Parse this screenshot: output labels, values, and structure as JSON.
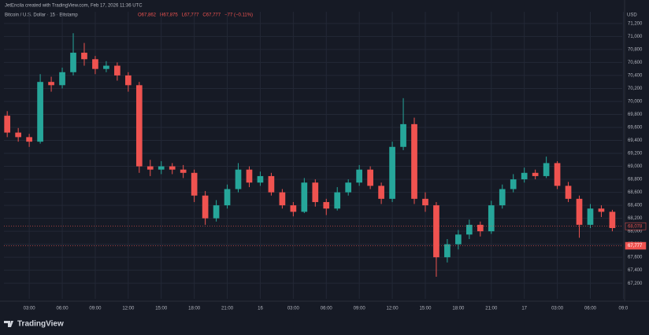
{
  "header": {
    "credit": "JetEncila created with TradingView.com, Feb 17, 2026 11:36 UTC",
    "symbol": "Bitcoin / U.S. Dollar · 15 · Bitstamp",
    "ohlc": [
      "O67,862",
      "H67,875",
      "L67,777",
      "C67,777",
      "−77 (−0.11%)"
    ],
    "brand": "TradingView"
  },
  "chart_data": {
    "type": "candlestick",
    "currency": "USD",
    "up_color": "#26a69a",
    "down_color": "#ef5350",
    "grid": true,
    "x": [
      1,
      2,
      3,
      4,
      5,
      6,
      7,
      8,
      9,
      10,
      11,
      12,
      13,
      14,
      15,
      16,
      17,
      18,
      19,
      20,
      21,
      22,
      23,
      24,
      25,
      26,
      27,
      28,
      29,
      30,
      31,
      32,
      33,
      34,
      35,
      36,
      37,
      38,
      39,
      40,
      41,
      42,
      43,
      44,
      45,
      46,
      47,
      48,
      49,
      50,
      51,
      52,
      53,
      54,
      55,
      56
    ],
    "open": [
      69780,
      69520,
      69450,
      69380,
      70300,
      70250,
      70450,
      70750,
      70650,
      70500,
      70550,
      70400,
      70250,
      69000,
      68950,
      69000,
      68950,
      68900,
      68550,
      68200,
      68400,
      68650,
      68950,
      68750,
      68850,
      68600,
      68400,
      68300,
      68750,
      68450,
      68350,
      68600,
      68750,
      68950,
      68700,
      68500,
      69300,
      69650,
      68500,
      68400,
      67600,
      67800,
      67950,
      68100,
      68000,
      68400,
      68650,
      68800,
      68900,
      68850,
      69050,
      68700,
      68500,
      68100,
      68350,
      68300
    ],
    "high": [
      69850,
      69590,
      69500,
      70420,
      70380,
      70520,
      71050,
      70900,
      70700,
      70620,
      70600,
      70450,
      70300,
      69100,
      69080,
      69050,
      69020,
      68950,
      68620,
      68480,
      68720,
      69050,
      69000,
      68920,
      68900,
      68650,
      68450,
      68820,
      68800,
      68500,
      68680,
      68800,
      69020,
      69000,
      68750,
      69380,
      70050,
      69750,
      68600,
      68450,
      67880,
      68020,
      68180,
      68150,
      68470,
      68720,
      68880,
      68980,
      68950,
      69150,
      69080,
      68760,
      68550,
      68420,
      68400,
      68330
    ],
    "low": [
      69450,
      69380,
      69300,
      69350,
      70150,
      70200,
      70400,
      70550,
      70420,
      70450,
      70320,
      70150,
      68900,
      68850,
      68880,
      68880,
      68820,
      68450,
      68100,
      68150,
      68350,
      68600,
      68680,
      68700,
      68550,
      68350,
      68230,
      68280,
      68380,
      68250,
      68320,
      68550,
      68700,
      68650,
      68420,
      68450,
      69250,
      68420,
      68300,
      67300,
      67520,
      67720,
      67880,
      67920,
      67960,
      68350,
      68600,
      68750,
      68800,
      68820,
      68650,
      68450,
      67900,
      68050,
      68220,
      68000
    ],
    "close": [
      69520,
      69450,
      69380,
      70300,
      70250,
      70450,
      70750,
      70650,
      70500,
      70550,
      70400,
      70250,
      69000,
      68950,
      69000,
      68950,
      68900,
      68550,
      68200,
      68400,
      68650,
      68950,
      68750,
      68850,
      68600,
      68400,
      68300,
      68750,
      68450,
      68350,
      68600,
      68750,
      68950,
      68700,
      68500,
      69300,
      69650,
      68500,
      68400,
      67600,
      67800,
      67950,
      68100,
      68000,
      68400,
      68650,
      68800,
      68900,
      68850,
      69050,
      68700,
      68500,
      68100,
      68350,
      68300,
      68050
    ],
    "xlim": [
      0.7,
      56.9
    ],
    "xticks": [
      {
        "value": 3,
        "label": "03:00"
      },
      {
        "value": 6,
        "label": "06:00"
      },
      {
        "value": 9,
        "label": "09:00"
      },
      {
        "value": 12,
        "label": "12:00"
      },
      {
        "value": 15,
        "label": "15:00"
      },
      {
        "value": 18,
        "label": "18:00"
      },
      {
        "value": 21,
        "label": "21:00"
      },
      {
        "value": 24,
        "label": "16"
      },
      {
        "value": 27,
        "label": "03:00"
      },
      {
        "value": 30,
        "label": "06:00"
      },
      {
        "value": 33,
        "label": "09:00"
      },
      {
        "value": 36,
        "label": "12:00"
      },
      {
        "value": 39,
        "label": "15:00"
      },
      {
        "value": 42,
        "label": "18:00"
      },
      {
        "value": 45,
        "label": "21:00"
      },
      {
        "value": 48,
        "label": "17"
      },
      {
        "value": 51,
        "label": "03:00"
      },
      {
        "value": 54,
        "label": "06:00"
      },
      {
        "value": 57,
        "label": "09:0"
      }
    ],
    "ylim": [
      66960,
      71380
    ],
    "yticks": [
      {
        "value": 67200,
        "label": "67,200"
      },
      {
        "value": 67400,
        "label": "67,400"
      },
      {
        "value": 67600,
        "label": "67,600"
      },
      {
        "value": 67800,
        "label": "67,800"
      },
      {
        "value": 68000,
        "label": "68,000"
      },
      {
        "value": 68200,
        "label": "68,200"
      },
      {
        "value": 68400,
        "label": "68,400"
      },
      {
        "value": 68600,
        "label": "68,600"
      },
      {
        "value": 68800,
        "label": "68,800"
      },
      {
        "value": 69000,
        "label": "69,000"
      },
      {
        "value": 69200,
        "label": "69,200"
      },
      {
        "value": 69400,
        "label": "69,400"
      },
      {
        "value": 69600,
        "label": "69,600"
      },
      {
        "value": 69800,
        "label": "69,800"
      },
      {
        "value": 70000,
        "label": "70,000"
      },
      {
        "value": 70200,
        "label": "70,200"
      },
      {
        "value": 70400,
        "label": "70,400"
      },
      {
        "value": 70600,
        "label": "70,600"
      },
      {
        "value": 70800,
        "label": "70,800"
      },
      {
        "value": 71000,
        "label": "71,000"
      },
      {
        "value": 71200,
        "label": "71,200"
      }
    ],
    "price_tags": [
      {
        "value": 68078,
        "label": "68,078"
      },
      {
        "value": 67777,
        "label": "67,777"
      }
    ]
  }
}
